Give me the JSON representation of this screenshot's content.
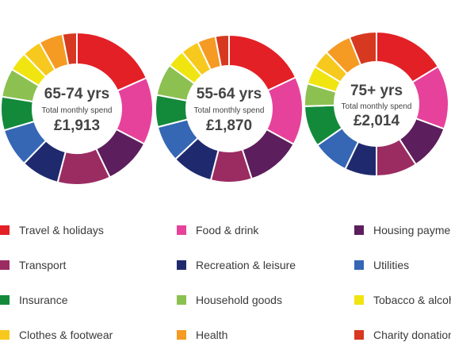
{
  "chart_data": {
    "type": "pie",
    "variant": "donut",
    "categories": [
      "Travel & holidays",
      "Food & drink",
      "Housing payments",
      "Transport",
      "Recreation & leisure",
      "Utilities",
      "Insurance",
      "Household goods",
      "Tobacco & alcohol",
      "Clothes & footwear",
      "Health",
      "Charity donations"
    ],
    "colors": [
      "#e32026",
      "#e6429b",
      "#5c1e5c",
      "#9b2c62",
      "#1f2a6e",
      "#3567b5",
      "#138a3a",
      "#8cc152",
      "#f0e510",
      "#f7c91e",
      "#f59a23",
      "#d6391f"
    ],
    "charts": [
      {
        "title": "65-74 yrs",
        "subtitle": "Total monthly spend",
        "total": "£1,913",
        "values": [
          18,
          14,
          10,
          11,
          8,
          8,
          7,
          6,
          4,
          4,
          5,
          3
        ]
      },
      {
        "title": "55-64 yrs",
        "subtitle": "Total monthly spend",
        "total": "£1,870",
        "values": [
          18,
          15,
          12,
          9,
          9,
          8,
          7,
          7,
          4,
          4,
          4,
          3
        ]
      },
      {
        "title": "75+ yrs",
        "subtitle": "Total monthly spend",
        "total": "£2,014",
        "values": [
          16,
          14,
          10,
          9,
          7,
          8,
          9,
          5,
          4,
          4,
          6,
          6
        ]
      }
    ]
  }
}
